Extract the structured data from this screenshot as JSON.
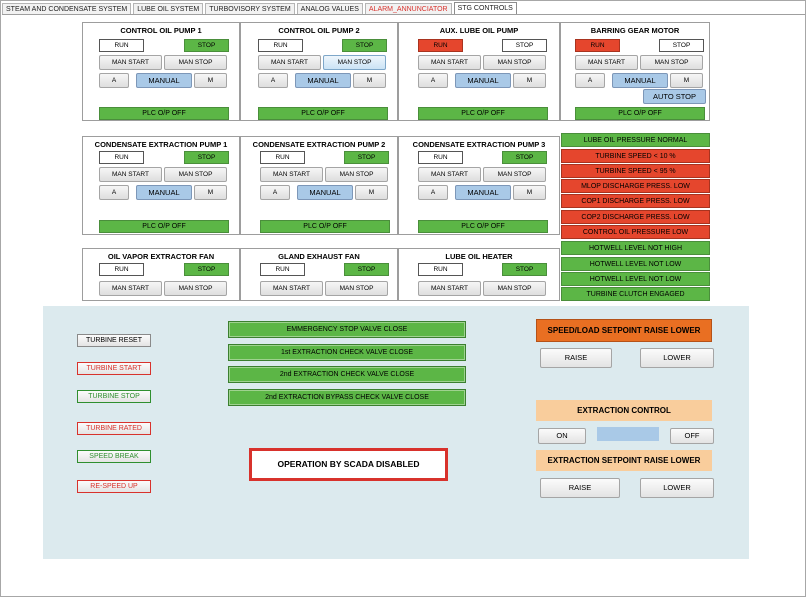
{
  "tabs": [
    {
      "label": "STEAM AND CONDENSATE SYSTEM"
    },
    {
      "label": "LUBE OIL SYSTEM"
    },
    {
      "label": "TURBOVISORY SYSTEM"
    },
    {
      "label": "ANALOG VALUES"
    },
    {
      "label": "ALARM_ANNUNCIATOR"
    },
    {
      "label": "STG CONTROLS"
    }
  ],
  "colors": {
    "green": "#5cb646",
    "red": "#e5462d",
    "blue": "#a9c9e7",
    "orange": "#e96f22",
    "peach": "#f9cd9c",
    "panel_bg": "#dceaee"
  },
  "row1": [
    {
      "title": "CONTROL OIL PUMP 1",
      "run": "RUN",
      "stop": "STOP",
      "man_start": "MAN START",
      "man_stop": "MAN STOP",
      "a": "A",
      "manual": "MANUAL",
      "m": "M",
      "plc": "PLC O/P OFF"
    },
    {
      "title": "CONTROL OIL PUMP 2",
      "run": "RUN",
      "stop": "STOP",
      "man_start": "MAN START",
      "man_stop": "MAN STOP",
      "a": "A",
      "manual": "MANUAL",
      "m": "M",
      "plc": "PLC O/P OFF"
    },
    {
      "title": "AUX. LUBE OIL PUMP",
      "run": "RUN",
      "stop": "STOP",
      "man_start": "MAN START",
      "man_stop": "MAN STOP",
      "a": "A",
      "manual": "MANUAL",
      "m": "M",
      "plc": "PLC O/P OFF"
    },
    {
      "title": "BARRING GEAR MOTOR",
      "run": "RUN",
      "stop": "STOP",
      "man_start": "MAN START",
      "man_stop": "MAN STOP",
      "a": "A",
      "manual": "MANUAL",
      "m": "M",
      "auto_stop": "AUTO STOP",
      "plc": "PLC O/P OFF"
    }
  ],
  "row2": [
    {
      "title": "CONDENSATE EXTRACTION PUMP 1",
      "run": "RUN",
      "stop": "STOP",
      "man_start": "MAN START",
      "man_stop": "MAN STOP",
      "a": "A",
      "manual": "MANUAL",
      "m": "M",
      "plc": "PLC O/P OFF"
    },
    {
      "title": "CONDENSATE EXTRACTION PUMP 2",
      "run": "RUN",
      "stop": "STOP",
      "man_start": "MAN START",
      "man_stop": "MAN STOP",
      "a": "A",
      "manual": "MANUAL",
      "m": "M",
      "plc": "PLC O/P OFF"
    },
    {
      "title": "CONDENSATE EXTRACTION PUMP 3",
      "run": "RUN",
      "stop": "STOP",
      "man_start": "MAN START",
      "man_stop": "MAN STOP",
      "a": "A",
      "manual": "MANUAL",
      "m": "M",
      "plc": "PLC O/P OFF"
    }
  ],
  "row3": [
    {
      "title": "OIL VAPOR EXTRACTOR FAN",
      "run": "RUN",
      "stop": "STOP",
      "man_start": "MAN START",
      "man_stop": "MAN STOP"
    },
    {
      "title": "GLAND EXHAUST FAN",
      "run": "RUN",
      "stop": "STOP",
      "man_start": "MAN START",
      "man_stop": "MAN STOP"
    },
    {
      "title": "LUBE OIL HEATER",
      "run": "RUN",
      "stop": "STOP",
      "man_start": "MAN START",
      "man_stop": "MAN STOP"
    }
  ],
  "status": [
    {
      "label": "LUBE OIL PRESSURE NORMAL",
      "state": "green"
    },
    {
      "label": "TURBINE SPEED < 10 %",
      "state": "red"
    },
    {
      "label": "TURBINE SPEED < 95 %",
      "state": "red"
    },
    {
      "label": "MLOP DISCHARGE PRESS. LOW",
      "state": "red"
    },
    {
      "label": "COP1 DISCHARGE PRESS. LOW",
      "state": "red"
    },
    {
      "label": "COP2 DISCHARGE PRESS. LOW",
      "state": "red"
    },
    {
      "label": "CONTROL OIL PRESSURE LOW",
      "state": "red"
    },
    {
      "label": "HOTWELL LEVEL NOT HIGH",
      "state": "green"
    },
    {
      "label": "HOTWELL LEVEL NOT LOW",
      "state": "green"
    },
    {
      "label": "HOTWELL LEVEL NOT LOW",
      "state": "green"
    },
    {
      "label": "TURBINE CLUTCH ENGAGED",
      "state": "green"
    }
  ],
  "turbine_buttons": [
    {
      "label": "TURBINE RESET",
      "style": "plain"
    },
    {
      "label": "TURBINE START",
      "style": "red"
    },
    {
      "label": "TURBINE STOP",
      "style": "green"
    },
    {
      "label": "TURBINE RATED",
      "style": "red"
    },
    {
      "label": "SPEED BREAK",
      "style": "green"
    },
    {
      "label": "RE-SPEED UP",
      "style": "red"
    }
  ],
  "valve_buttons": [
    {
      "label": "EMMERGENCY STOP VALVE CLOSE"
    },
    {
      "label": "1st EXTRACTION CHECK VALVE CLOSE"
    },
    {
      "label": "2nd EXTRACTION CHECK VALVE CLOSE"
    },
    {
      "label": "2nd EXTRACTION BYPASS CHECK VALVE CLOSE"
    }
  ],
  "scada_message": "OPERATION BY SCADA DISABLED",
  "speed_load": {
    "title": "SPEED/LOAD SETPOINT RAISE LOWER",
    "raise": "RAISE",
    "lower": "LOWER"
  },
  "extraction_control": {
    "title": "EXTRACTION CONTROL",
    "on": "ON",
    "off": "OFF"
  },
  "extraction_setpoint": {
    "title": "EXTRACTION SETPOINT RAISE LOWER",
    "raise": "RAISE",
    "lower": "LOWER"
  }
}
